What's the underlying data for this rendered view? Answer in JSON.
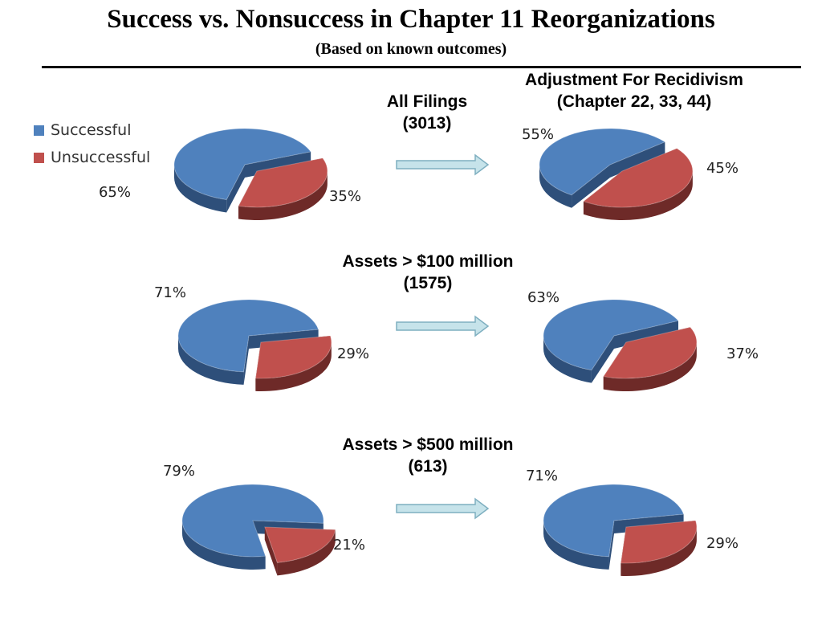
{
  "title": "Success vs. Nonsuccess in Chapter 11 Reorganizations",
  "subtitle": "(Based on known outcomes)",
  "legend": [
    {
      "label": "Successful",
      "color": "#4F81BD"
    },
    {
      "label": "Unsuccessful",
      "color": "#C0504D"
    }
  ],
  "headings": {
    "all_filings": [
      "All Filings",
      "(3013)"
    ],
    "adjustment": [
      "Adjustment  For Recidivism",
      "(Chapter 22, 33, 44)"
    ],
    "assets_100": [
      "Assets > $100 million",
      "(1575)"
    ],
    "assets_500": [
      "Assets > $500 million",
      "(613)"
    ]
  },
  "chart_data": [
    {
      "type": "pie",
      "group": "All Filings (3013)",
      "categories": [
        "Successful",
        "Unsuccessful"
      ],
      "values": [
        65,
        35
      ],
      "labels": [
        "65%",
        "35%"
      ]
    },
    {
      "type": "pie",
      "group": "All Filings (3013) - Adjustment For Recidivism",
      "categories": [
        "Successful",
        "Unsuccessful"
      ],
      "values": [
        55,
        45
      ],
      "labels": [
        "55%",
        "45%"
      ]
    },
    {
      "type": "pie",
      "group": "Assets > $100 million (1575)",
      "categories": [
        "Successful",
        "Unsuccessful"
      ],
      "values": [
        71,
        29
      ],
      "labels": [
        "71%",
        "29%"
      ]
    },
    {
      "type": "pie",
      "group": "Assets > $100 million (1575) - Adjustment For Recidivism",
      "categories": [
        "Successful",
        "Unsuccessful"
      ],
      "values": [
        63,
        37
      ],
      "labels": [
        "63%",
        "37%"
      ]
    },
    {
      "type": "pie",
      "group": "Assets > $500 million (613)",
      "categories": [
        "Successful",
        "Unsuccessful"
      ],
      "values": [
        79,
        21
      ],
      "labels": [
        "79%",
        "21%"
      ]
    },
    {
      "type": "pie",
      "group": "Assets > $500 million (613) - Adjustment For Recidivism",
      "categories": [
        "Successful",
        "Unsuccessful"
      ],
      "values": [
        71,
        29
      ],
      "labels": [
        "71%",
        "29%"
      ]
    }
  ]
}
